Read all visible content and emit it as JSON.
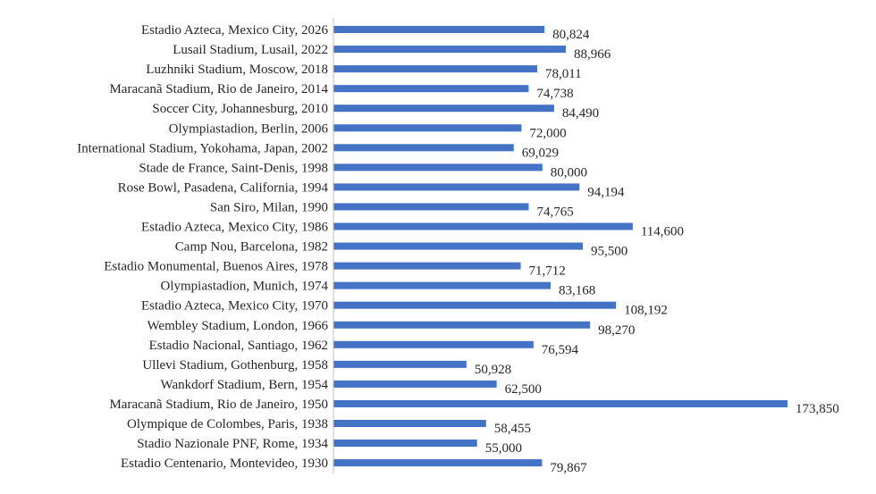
{
  "chart_data": {
    "type": "bar",
    "orientation": "horizontal",
    "categories": [
      "Estadio Azteca, Mexico City, 2026",
      "Lusail Stadium, Lusail, 2022",
      "Luzhniki Stadium, Moscow, 2018",
      "Maracanã Stadium, Rio de Janeiro, 2014",
      "Soccer City, Johannesburg, 2010",
      "Olympiastadion, Berlin, 2006",
      "International Stadium, Yokohama, Japan, 2002",
      "Stade de France, Saint-Denis, 1998",
      "Rose Bowl, Pasadena, California, 1994",
      "San Siro, Milan, 1990",
      "Estadio Azteca, Mexico City, 1986",
      "Camp Nou, Barcelona, 1982",
      "Estadio Monumental, Buenos Aires, 1978",
      "Olympiastadion, Munich, 1974",
      "Estadio Azteca, Mexico City, 1970",
      "Wembley Stadium, London, 1966",
      "Estadio Nacional, Santiago, 1962",
      "Ullevi Stadium, Gothenburg, 1958",
      "Wankdorf Stadium, Bern, 1954",
      "Maracanã Stadium, Rio de Janeiro, 1950",
      "Olympique de Colombes, Paris, 1938",
      "Stadio Nazionale PNF, Rome, 1934",
      "Estadio Centenario, Montevideo, 1930"
    ],
    "values": [
      80824,
      88966,
      78011,
      74738,
      84490,
      72000,
      69029,
      80000,
      94194,
      74765,
      114600,
      95500,
      71712,
      83168,
      108192,
      98270,
      76594,
      50928,
      62500,
      173850,
      58455,
      55000,
      79867
    ],
    "value_labels": [
      "80,824",
      "88,966",
      "78,011",
      "74,738",
      "84,490",
      "72,000",
      "69,029",
      "80,000",
      "94,194",
      "74,765",
      "114,600",
      "95,500",
      "71,712",
      "83,168",
      "108,192",
      "98,270",
      "76,594",
      "50,928",
      "62,500",
      "173,850",
      "58,455",
      "55,000",
      "79,867"
    ],
    "xlim": [
      0,
      173850
    ],
    "grid": false,
    "bar_color": "#4472C4",
    "axis_color": "#BFBFBF",
    "title": "",
    "xlabel": "",
    "ylabel": ""
  }
}
